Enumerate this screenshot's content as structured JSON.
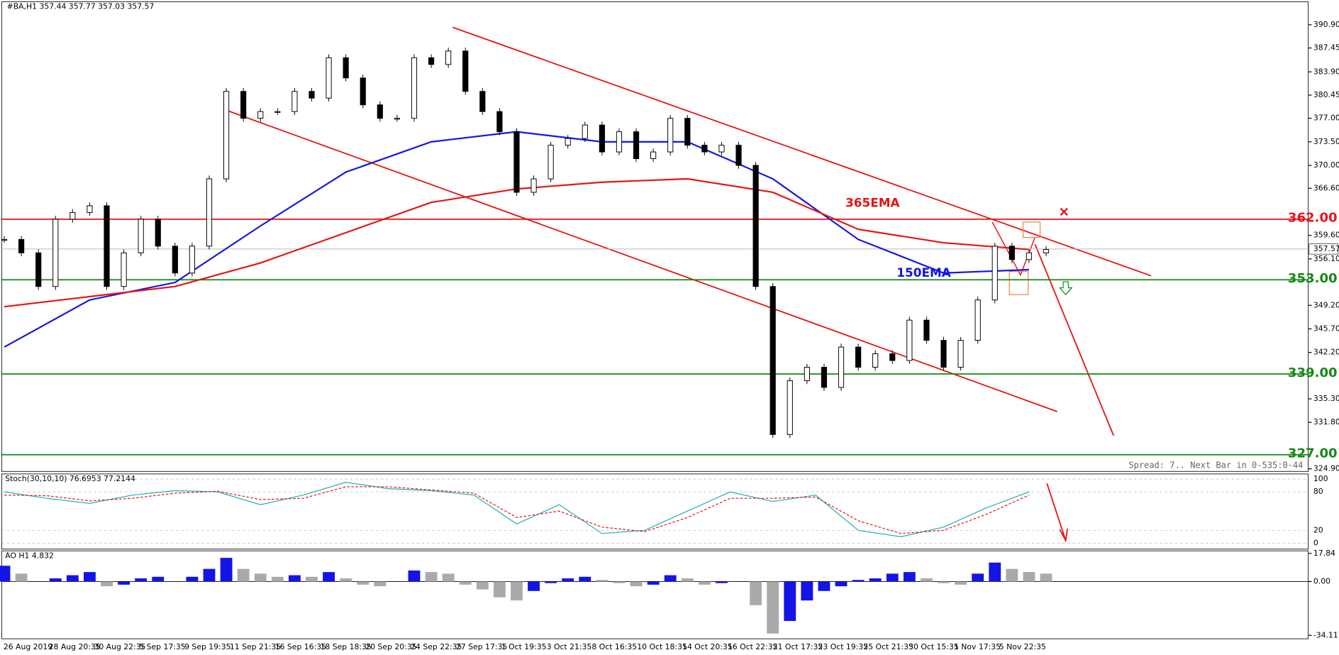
{
  "header": "#BA,H1  357.44 357.77 357.03 357.57",
  "price_axis": {
    "ylim": [
      324.9,
      390.9
    ],
    "ticks": [
      {
        "value": 390.9,
        "label": "390.90"
      },
      {
        "value": 387.45,
        "label": "387.45"
      },
      {
        "value": 383.9,
        "label": "383.90"
      },
      {
        "value": 380.45,
        "label": "380.45"
      },
      {
        "value": 377,
        "label": "377.00"
      },
      {
        "value": 373.5,
        "label": "373.50"
      },
      {
        "value": 370,
        "label": "370.00"
      },
      {
        "value": 366.6,
        "label": "366.60"
      },
      {
        "value": 359.6,
        "label": "359.60"
      },
      {
        "value": 356.1,
        "label": "356.10"
      },
      {
        "value": 349.2,
        "label": "349.20"
      },
      {
        "value": 345.7,
        "label": "345.70"
      },
      {
        "value": 342.2,
        "label": "342.20"
      },
      {
        "value": 335.3,
        "label": "335.30"
      },
      {
        "value": 331.8,
        "label": "331.80"
      },
      {
        "value": 324.9,
        "label": "324.90"
      }
    ],
    "current": {
      "value": 357.57,
      "label": "357.57"
    }
  },
  "levels": [
    {
      "value": 362,
      "label": "362.00",
      "color": "#e8141c"
    },
    {
      "value": 353,
      "label": "353.00",
      "color": "#138a13"
    },
    {
      "value": 339,
      "label": "339.00",
      "color": "#138a13"
    },
    {
      "value": 327,
      "label": "327.00",
      "color": "#138a13"
    }
  ],
  "closes": [
    359,
    357,
    352,
    362,
    363,
    364,
    352,
    357,
    362,
    358,
    354,
    358,
    368,
    381,
    377,
    378,
    378,
    381,
    380,
    386,
    383,
    379,
    377,
    377,
    386,
    385,
    387,
    381,
    378,
    375,
    366,
    368,
    373,
    374,
    376,
    372,
    375,
    371,
    372,
    377,
    373,
    372,
    373,
    370,
    352,
    330,
    338,
    340,
    337,
    343,
    340,
    342,
    341,
    347,
    344,
    340,
    344,
    350,
    358,
    356,
    357,
    357.5
  ],
  "ema150": {
    "label": "150EMA",
    "color": "#1414e6",
    "values": [
      343,
      350,
      352.6,
      361,
      369,
      373.5,
      375,
      373.5,
      373.5,
      368,
      359,
      354,
      354.5
    ]
  },
  "ema365": {
    "label": "365EMA",
    "color": "#e61414",
    "values": [
      349,
      350.5,
      352,
      355.5,
      360,
      364.5,
      366.5,
      367.5,
      368,
      366,
      360.5,
      358.5,
      357.5
    ]
  },
  "time_labels": [
    "26 Aug 2019",
    "28 Aug 20:35",
    "30 Aug 22:35",
    "5 Sep 17:35",
    "9 Sep 19:35",
    "11 Sep 21:35",
    "16 Sep 16:35",
    "18 Sep 18:35",
    "20 Sep 20:35",
    "24 Sep 22:35",
    "27 Sep 17:35",
    "1 Oct 19:35",
    "3 Oct 21:35",
    "8 Oct 16:35",
    "10 Oct 18:35",
    "14 Oct 20:35",
    "16 Oct 22:35",
    "21 Oct 17:35",
    "23 Oct 19:35",
    "25 Oct 21:35",
    "30 Oct 15:35",
    "1 Nov 17:35",
    "5 Nov 22:35"
  ],
  "spread": "Spread: 7.. Next Bar in 0-535:0-44",
  "stoch": {
    "label": "Stoch(30,10,10) 76.6953 77.2144",
    "ylim": [
      0,
      100
    ],
    "ticks": [
      100,
      80,
      20,
      0
    ],
    "main": [
      80,
      70,
      62,
      75,
      82,
      80,
      60,
      75,
      95,
      85,
      82,
      75,
      30,
      60,
      15,
      20,
      50,
      80,
      65,
      75,
      20,
      10,
      25,
      55,
      80
    ],
    "signal": [
      75,
      74,
      66,
      70,
      78,
      81,
      68,
      70,
      88,
      88,
      83,
      78,
      40,
      50,
      25,
      18,
      40,
      70,
      70,
      72,
      35,
      15,
      20,
      45,
      75
    ]
  },
  "ao": {
    "label": "AO H1  4.832",
    "ylim": [
      -34.117,
      17.84
    ],
    "ticks": [
      17.84,
      {
        "value": 0,
        "label": "0.00"
      },
      -34.117
    ],
    "values": [
      10,
      5,
      0,
      2,
      4,
      6,
      -3,
      -2,
      2,
      3,
      0,
      3,
      8,
      15,
      8,
      5,
      3,
      4,
      3,
      6,
      2,
      -2,
      -3,
      0,
      7,
      6,
      5,
      -2,
      -5,
      -10,
      -12,
      -6,
      -1,
      2,
      3,
      1,
      -1,
      -3,
      -2,
      4,
      2,
      -2,
      -1,
      0,
      -15,
      -33,
      -25,
      -12,
      -6,
      -3,
      1,
      2,
      5,
      6,
      2,
      -1,
      -2,
      5,
      12,
      8,
      6,
      5
    ]
  }
}
